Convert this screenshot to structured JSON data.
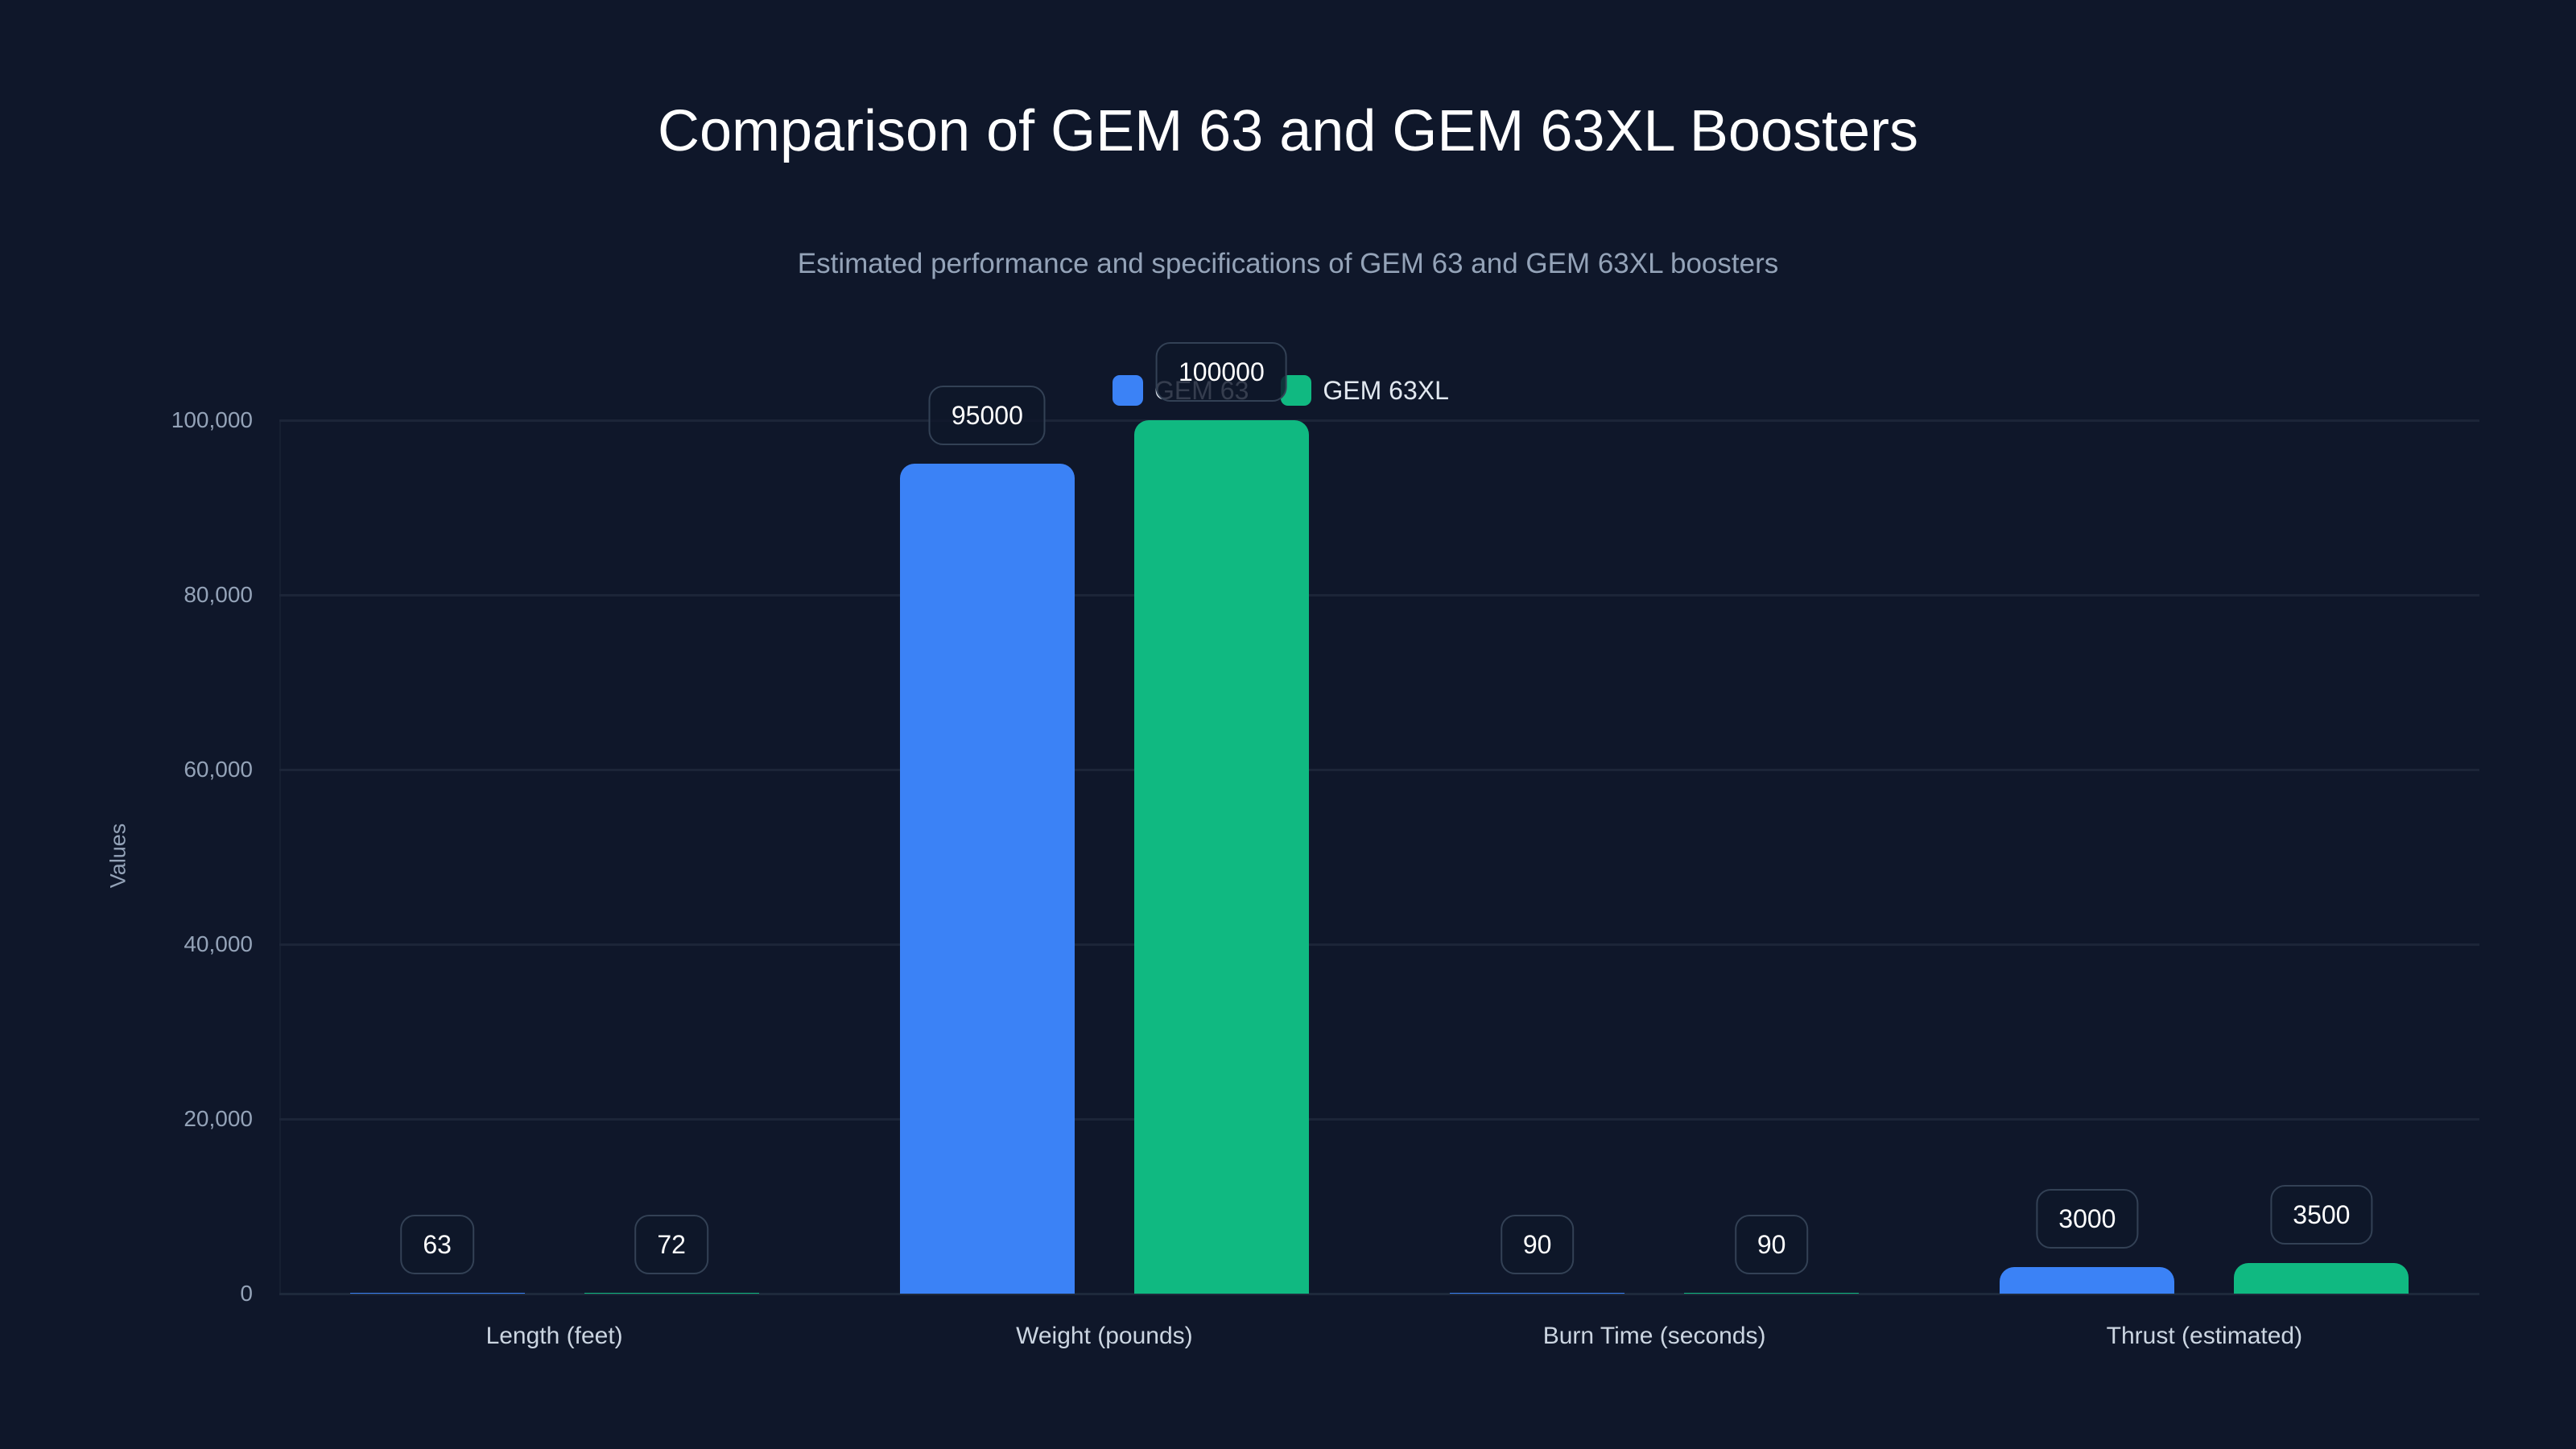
{
  "chart_data": {
    "type": "bar",
    "title": "Comparison of GEM 63 and GEM 63XL Boosters",
    "subtitle": "Estimated performance and specifications of GEM 63 and GEM 63XL boosters",
    "xlabel": "",
    "ylabel": "Values",
    "categories": [
      "Length (feet)",
      "Weight (pounds)",
      "Burn Time (seconds)",
      "Thrust (estimated)"
    ],
    "series": [
      {
        "name": "GEM 63",
        "color": "#3b82f6",
        "values": [
          63,
          95000,
          90,
          3000
        ],
        "labels": [
          "63",
          "95000",
          "90",
          "3000"
        ]
      },
      {
        "name": "GEM 63XL",
        "color": "#10b981",
        "values": [
          72,
          100000,
          90,
          3500
        ],
        "labels": [
          "72",
          "100000",
          "90",
          "3500"
        ]
      }
    ],
    "ylim": [
      0,
      100000
    ],
    "yticks": [
      0,
      20000,
      40000,
      60000,
      80000,
      100000
    ],
    "ytick_labels": [
      "0",
      "20,000",
      "40,000",
      "60,000",
      "80,000",
      "100,000"
    ],
    "grid": true,
    "legend_position": "top"
  },
  "colors": {
    "background": "#0f172a",
    "gem63": "#3b82f6",
    "gem63xl": "#10b981"
  }
}
